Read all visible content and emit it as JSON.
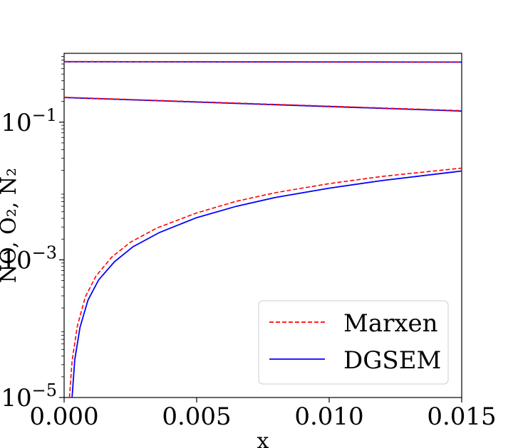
{
  "chart_data": {
    "type": "line",
    "title": "",
    "xlabel": "x",
    "ylabel": "NO, O₂, N₂",
    "xscale": "linear",
    "yscale": "log",
    "xlim": [
      0,
      0.015
    ],
    "ylim": [
      1e-05,
      1
    ],
    "xticks": [
      {
        "value": 0.0,
        "label": "0.000"
      },
      {
        "value": 0.005,
        "label": "0.005"
      },
      {
        "value": 0.01,
        "label": "0.010"
      },
      {
        "value": 0.015,
        "label": "0.015"
      }
    ],
    "yticks": [
      {
        "value": 1e-05,
        "base": "10",
        "exponent": "−5"
      },
      {
        "value": 0.001,
        "base": "10",
        "exponent": "−3"
      },
      {
        "value": 0.1,
        "base": "10",
        "exponent": "−1"
      }
    ],
    "legend": {
      "position": "bottom-right"
    },
    "series": [
      {
        "name": "Marxen",
        "color": "#ff0000",
        "style": "dashed",
        "components": {
          "N2": {
            "x": [
              0,
              0.015
            ],
            "y": [
              0.76,
              0.75
            ]
          },
          "O2": {
            "x": [
              0,
              0.015
            ],
            "y": [
              0.23,
              0.147
            ]
          },
          "NO": {
            "x": [
              0.0002,
              0.0003,
              0.0005,
              0.0008,
              0.0012,
              0.0018,
              0.0025,
              0.0035,
              0.005,
              0.0065,
              0.008,
              0.01,
              0.012,
              0.015
            ],
            "y": [
              1e-05,
              3.4e-05,
              0.00011,
              0.00029,
              0.00058,
              0.0011,
              0.0018,
              0.0029,
              0.0048,
              0.0071,
              0.0095,
              0.0128,
              0.0163,
              0.0215
            ]
          }
        }
      },
      {
        "name": "DGSEM",
        "color": "#0000ff",
        "style": "solid",
        "components": {
          "N2": {
            "x": [
              0,
              0.015
            ],
            "y": [
              0.755,
              0.745
            ]
          },
          "O2": {
            "x": [
              0,
              0.015
            ],
            "y": [
              0.228,
              0.145
            ]
          },
          "NO": {
            "x": [
              0.0003,
              0.0004,
              0.0006,
              0.0009,
              0.0013,
              0.0019,
              0.0026,
              0.0036,
              0.005,
              0.0065,
              0.008,
              0.01,
              0.012,
              0.015
            ],
            "y": [
              1e-05,
              3.5e-05,
              0.000105,
              0.00026,
              0.00051,
              0.00094,
              0.00155,
              0.0025,
              0.0041,
              0.006,
              0.0081,
              0.011,
              0.0142,
              0.0195
            ]
          }
        }
      }
    ]
  }
}
